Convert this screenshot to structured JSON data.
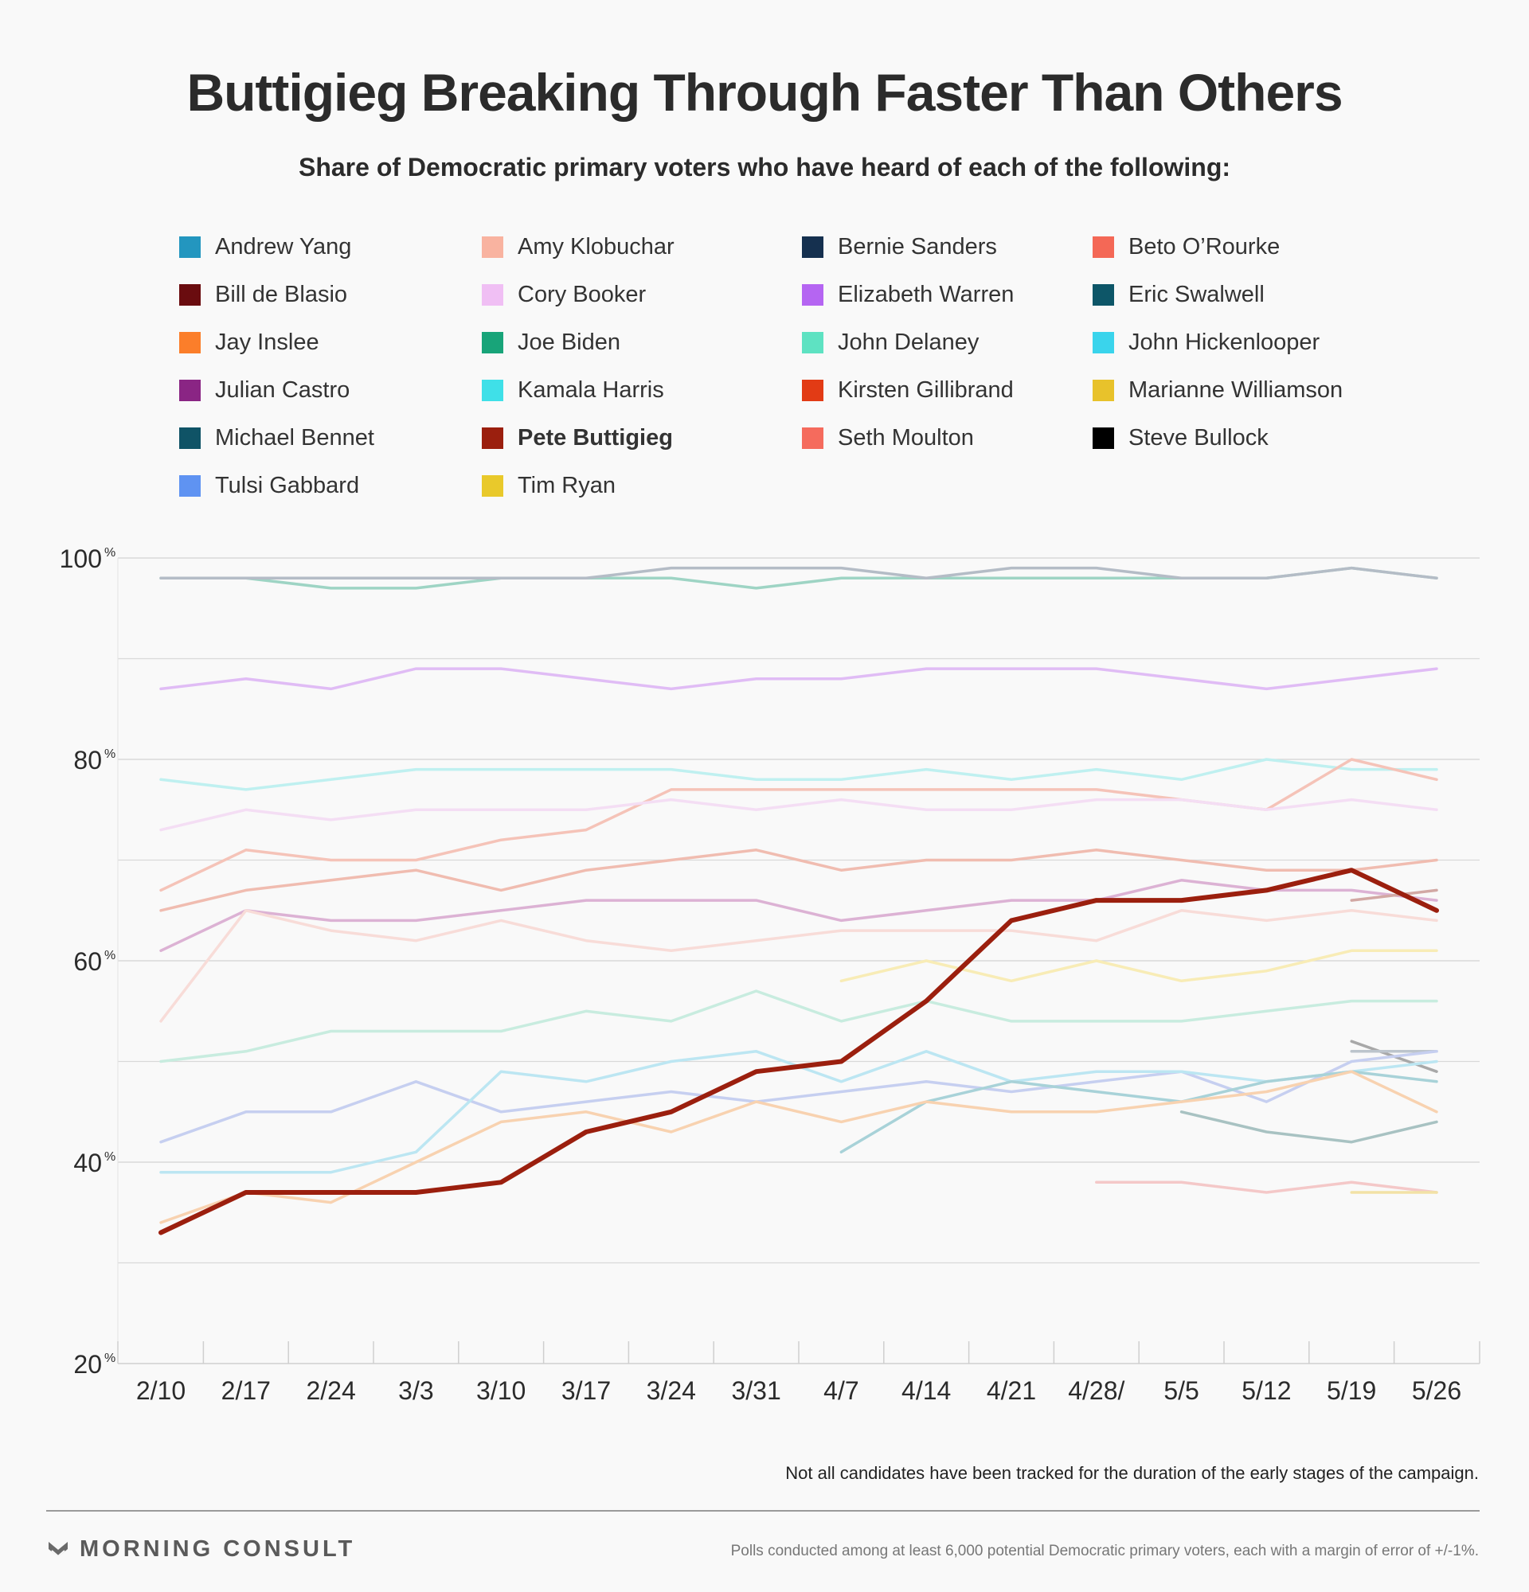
{
  "header": {
    "title": "Buttigieg Breaking Through Faster Than Others",
    "subtitle": "Share of Democratic primary voters who have heard of each of the following:"
  },
  "legend": [
    {
      "name": "Andrew Yang",
      "color": "#2396bf"
    },
    {
      "name": "Amy Klobuchar",
      "color": "#f9b3a0"
    },
    {
      "name": "Bernie Sanders",
      "color": "#15304f"
    },
    {
      "name": "Beto O’Rourke",
      "color": "#f46856"
    },
    {
      "name": "Bill de Blasio",
      "color": "#6a0c0f"
    },
    {
      "name": "Cory Booker",
      "color": "#f0bff4"
    },
    {
      "name": "Elizabeth Warren",
      "color": "#b565f2"
    },
    {
      "name": "Eric Swalwell",
      "color": "#0d5668"
    },
    {
      "name": "Jay Inslee",
      "color": "#fb7e2a"
    },
    {
      "name": "Joe Biden",
      "color": "#18a479"
    },
    {
      "name": "John Delaney",
      "color": "#5ee2c2"
    },
    {
      "name": "John Hickenlooper",
      "color": "#3ad4ec"
    },
    {
      "name": "Julian Castro",
      "color": "#8a2584"
    },
    {
      "name": "Kamala Harris",
      "color": "#3fe0e8"
    },
    {
      "name": "Kirsten Gillibrand",
      "color": "#e23b15"
    },
    {
      "name": "Marianne Williamson",
      "color": "#e8c22b"
    },
    {
      "name": "Michael Bennet",
      "color": "#0f5366"
    },
    {
      "name": "Pete Buttigieg",
      "color": "#9b1f0e",
      "bold": true
    },
    {
      "name": "Seth Moulton",
      "color": "#f56b5d"
    },
    {
      "name": "Steve Bullock",
      "color": "#000000"
    },
    {
      "name": "Tulsi Gabbard",
      "color": "#5f93f2"
    },
    {
      "name": "Tim Ryan",
      "color": "#e9c92b"
    }
  ],
  "chart_data": {
    "type": "line",
    "x": [
      "2/10",
      "2/17",
      "2/24",
      "3/3",
      "3/10",
      "3/17",
      "3/24",
      "3/31",
      "4/7",
      "4/14",
      "4/21",
      "4/28/",
      "5/5",
      "5/12",
      "5/19",
      "5/26"
    ],
    "ylim": [
      20,
      100
    ],
    "yticks": [
      20,
      40,
      60,
      80,
      100
    ],
    "ytick_labels": [
      "20",
      "40",
      "60",
      "80",
      "100"
    ],
    "ytick_suffix": "%",
    "grid": true,
    "highlight": "Pete Buttigieg",
    "series": [
      {
        "name": "Joe Biden",
        "color": "#9ed4c4",
        "values": [
          98,
          98,
          97,
          97,
          98,
          98,
          98,
          97,
          98,
          98,
          98,
          98,
          98,
          98,
          99,
          98
        ]
      },
      {
        "name": "Bernie Sanders",
        "color": "#b4bcc6",
        "values": [
          98,
          98,
          98,
          98,
          98,
          98,
          99,
          99,
          99,
          98,
          99,
          99,
          98,
          98,
          99,
          98
        ]
      },
      {
        "name": "Elizabeth Warren",
        "color": "#e0bcf5",
        "values": [
          87,
          88,
          87,
          89,
          89,
          88,
          87,
          88,
          88,
          89,
          89,
          89,
          88,
          87,
          88,
          89
        ]
      },
      {
        "name": "Kamala Harris",
        "color": "#bff0f0",
        "values": [
          78,
          77,
          78,
          79,
          79,
          79,
          79,
          78,
          78,
          79,
          78,
          79,
          78,
          80,
          79,
          79
        ]
      },
      {
        "name": "Beto O’Rourke",
        "color": "#f5c3b8",
        "values": [
          67,
          71,
          70,
          70,
          72,
          73,
          77,
          77,
          77,
          77,
          77,
          77,
          76,
          75,
          80,
          78
        ]
      },
      {
        "name": "Cory Booker",
        "color": "#f4def4",
        "values": [
          73,
          75,
          74,
          75,
          75,
          75,
          76,
          75,
          76,
          75,
          75,
          76,
          76,
          75,
          76,
          75
        ]
      },
      {
        "name": "Bill de Blasio",
        "color": "#f0bcb0",
        "values": [
          65,
          67,
          68,
          69,
          67,
          69,
          70,
          71,
          69,
          70,
          70,
          71,
          70,
          69,
          69,
          70
        ]
      },
      {
        "name": "Julian Castro",
        "color": "#dcb2d4",
        "values": [
          61,
          65,
          64,
          64,
          65,
          66,
          66,
          66,
          64,
          65,
          66,
          66,
          68,
          67,
          67,
          66
        ]
      },
      {
        "name": "Kirsten Gillibrand",
        "color": "#f8dcd8",
        "values": [
          54,
          65,
          63,
          62,
          64,
          62,
          61,
          62,
          63,
          63,
          63,
          62,
          65,
          64,
          65,
          64
        ]
      },
      {
        "name": "Seth Moulton",
        "color": "#d2a8a4",
        "values": [
          null,
          null,
          null,
          null,
          null,
          null,
          null,
          null,
          null,
          null,
          null,
          null,
          null,
          null,
          66,
          67
        ]
      },
      {
        "name": "Marianne Williamson",
        "color": "#f8ecb6",
        "values": [
          null,
          null,
          null,
          null,
          null,
          null,
          null,
          null,
          58,
          60,
          58,
          60,
          58,
          59,
          61,
          61
        ]
      },
      {
        "name": "John Delaney",
        "color": "#c8ecdf",
        "values": [
          50,
          51,
          53,
          53,
          53,
          55,
          54,
          57,
          54,
          56,
          54,
          54,
          54,
          55,
          56,
          56
        ]
      },
      {
        "name": "Eric Swalwell",
        "color": "#a8a8a8",
        "values": [
          null,
          null,
          null,
          null,
          null,
          null,
          null,
          null,
          null,
          null,
          null,
          null,
          null,
          null,
          52,
          49
        ]
      },
      {
        "name": "Michael Bennet",
        "color": "#bcc4cc",
        "values": [
          null,
          null,
          null,
          null,
          null,
          null,
          null,
          null,
          null,
          null,
          null,
          null,
          null,
          null,
          51,
          51
        ]
      },
      {
        "name": "Tulsi Gabbard",
        "color": "#c6cff0",
        "values": [
          42,
          45,
          45,
          48,
          45,
          46,
          47,
          46,
          47,
          48,
          47,
          48,
          49,
          46,
          50,
          51
        ]
      },
      {
        "name": "John Hickenlooper",
        "color": "#bce6f2",
        "values": [
          39,
          39,
          39,
          41,
          49,
          48,
          50,
          51,
          48,
          51,
          48,
          49,
          49,
          48,
          49,
          50
        ]
      },
      {
        "name": "Andrew Yang",
        "color": "#a8d2d8",
        "values": [
          null,
          null,
          null,
          null,
          null,
          null,
          null,
          null,
          41,
          46,
          48,
          47,
          46,
          48,
          49,
          48
        ]
      },
      {
        "name": "Jay Inslee",
        "color": "#f8d2b0",
        "values": [
          34,
          37,
          36,
          40,
          44,
          45,
          43,
          46,
          44,
          46,
          45,
          45,
          46,
          47,
          49,
          45
        ]
      },
      {
        "name": "Steve Bullock",
        "color": "#a8c2c2",
        "values": [
          null,
          null,
          null,
          null,
          null,
          null,
          null,
          null,
          null,
          null,
          null,
          null,
          45,
          43,
          42,
          44
        ]
      },
      {
        "name": "Amy Klobuchar",
        "color": "#f4c8c8",
        "values": [
          null,
          null,
          null,
          null,
          null,
          null,
          null,
          null,
          null,
          null,
          null,
          38,
          38,
          37,
          38,
          37
        ]
      },
      {
        "name": "Tim Ryan",
        "color": "#f2e2a6",
        "values": [
          null,
          null,
          null,
          null,
          null,
          null,
          null,
          null,
          null,
          null,
          null,
          null,
          null,
          null,
          37,
          37
        ]
      },
      {
        "name": "Pete Buttigieg",
        "color": "#9b1f0e",
        "values": [
          33,
          37,
          37,
          37,
          38,
          43,
          45,
          49,
          50,
          56,
          64,
          66,
          66,
          67,
          69,
          65
        ]
      }
    ]
  },
  "footer": {
    "note": "Not all candidates have been tracked for the duration of the early stages of the campaign.",
    "brand": "MORNING CONSULT",
    "footnote": "Polls conducted among at least 6,000 potential Democratic primary voters, each with a margin of error of +/-1%."
  }
}
